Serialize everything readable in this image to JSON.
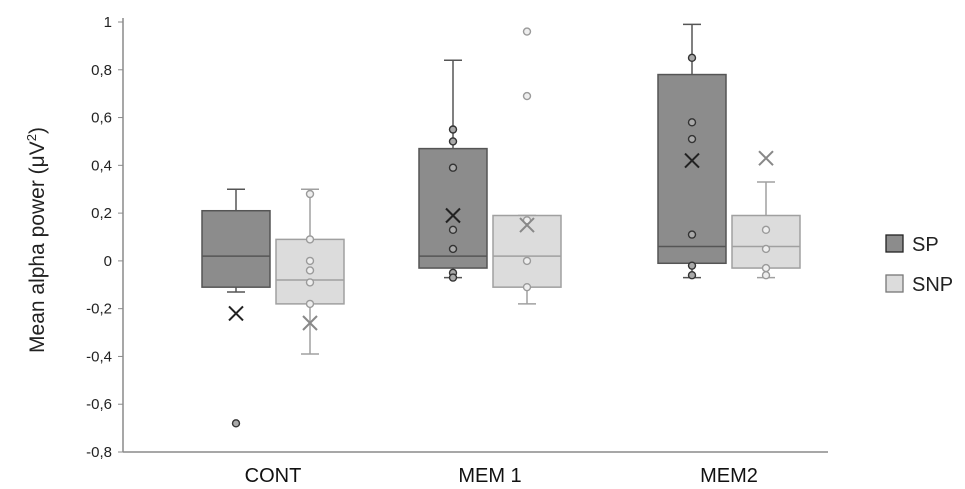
{
  "chart_data": {
    "type": "box",
    "ylabel": "Mean alpha power (μV²)",
    "ylabel_main": "Mean alpha power (μV",
    "ylabel_sup": "2",
    "ylabel_end": ")",
    "ylim": [
      -0.8,
      1.0
    ],
    "y_ticks": [
      {
        "value": -0.8,
        "label": "-0,8"
      },
      {
        "value": -0.6,
        "label": "-0,6"
      },
      {
        "value": -0.4,
        "label": "-0,4"
      },
      {
        "value": -0.2,
        "label": "-0,2"
      },
      {
        "value": 0,
        "label": "0"
      },
      {
        "value": 0.2,
        "label": "0,2"
      },
      {
        "value": 0.4,
        "label": "0,4"
      },
      {
        "value": 0.6,
        "label": "0,6"
      },
      {
        "value": 0.8,
        "label": "0,8"
      },
      {
        "value": 1.0,
        "label": "1"
      }
    ],
    "categories": [
      "CONT",
      "MEM 1",
      "MEM2"
    ],
    "legend_position": "right",
    "series": [
      {
        "name": "SP",
        "fill": "#8c8c8c",
        "stroke": "#555555",
        "boxes": [
          {
            "whisker_low": -0.13,
            "q1": -0.11,
            "median": 0.02,
            "q3": 0.21,
            "whisker_high": 0.3,
            "mean": -0.22,
            "points": [],
            "outliers": [
              -0.68
            ]
          },
          {
            "whisker_low": -0.07,
            "q1": -0.03,
            "median": 0.02,
            "q3": 0.47,
            "whisker_high": 0.84,
            "mean": 0.19,
            "points": [
              0.55,
              0.5,
              0.39,
              0.13,
              0.05,
              -0.05,
              -0.07
            ],
            "outliers": []
          },
          {
            "whisker_low": -0.07,
            "q1": -0.01,
            "median": 0.06,
            "q3": 0.78,
            "whisker_high": 0.99,
            "mean": 0.42,
            "points": [
              0.85,
              0.58,
              0.51,
              0.11,
              -0.02,
              -0.06
            ],
            "outliers": []
          }
        ]
      },
      {
        "name": "SNP",
        "fill": "#dcdcdc",
        "stroke": "#a0a0a0",
        "boxes": [
          {
            "whisker_low": -0.39,
            "q1": -0.18,
            "median": -0.08,
            "q3": 0.09,
            "whisker_high": 0.3,
            "mean": -0.26,
            "points": [
              0.28,
              0.09,
              0.0,
              -0.04,
              -0.09,
              -0.18
            ],
            "outliers": []
          },
          {
            "whisker_low": -0.18,
            "q1": -0.11,
            "median": 0.02,
            "q3": 0.19,
            "whisker_high": 0.19,
            "mean": 0.15,
            "points": [
              0.17,
              0.0,
              -0.11
            ],
            "outliers": [
              0.96,
              0.69
            ]
          },
          {
            "whisker_low": -0.07,
            "q1": -0.03,
            "median": 0.06,
            "q3": 0.19,
            "whisker_high": 0.33,
            "mean": 0.43,
            "points": [
              0.13,
              0.05,
              -0.03,
              -0.06
            ],
            "outliers": []
          }
        ]
      }
    ]
  }
}
